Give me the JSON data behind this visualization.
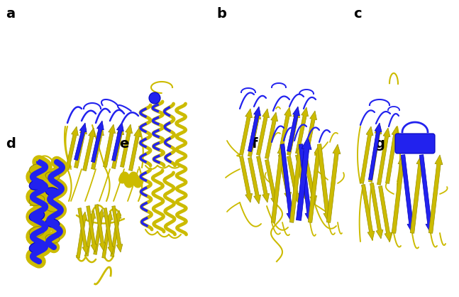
{
  "background_color": "#ffffff",
  "labels": [
    "a",
    "b",
    "c",
    "d",
    "e",
    "f",
    "g"
  ],
  "label_fontsize": 14,
  "label_fontweight": "bold",
  "yellow": "#ccbb00",
  "blue": "#2222ee",
  "yellow_dark": "#999000",
  "blue_dark": "#0000bb"
}
